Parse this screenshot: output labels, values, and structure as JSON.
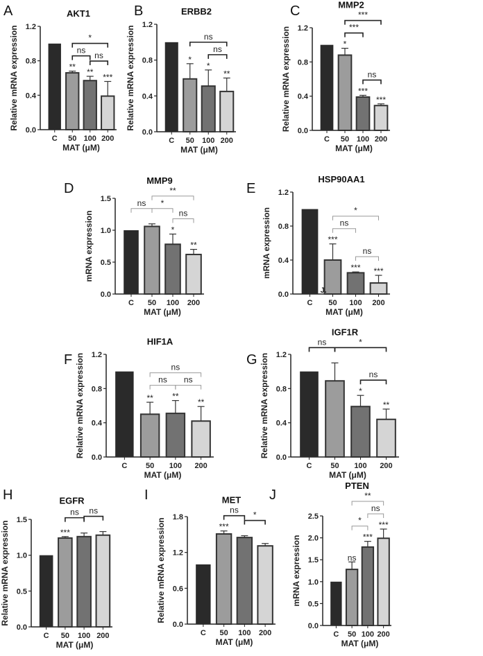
{
  "chart_data": [
    {
      "panel": "A",
      "type": "bar",
      "title": "AKT1",
      "ylabel": "Relative mRNA expression",
      "xlabel": "MAT (μM)",
      "categories": [
        "C",
        "50",
        "100",
        "200"
      ],
      "ylim": [
        0,
        1.2
      ],
      "yticks": [
        "0.0",
        "0.4",
        "0.8",
        "1.2"
      ],
      "values": [
        1.0,
        0.66,
        0.57,
        0.39
      ],
      "errors": [
        0,
        0.02,
        0.05,
        0.17
      ],
      "bar_labels": [
        "",
        "**",
        "**",
        "***"
      ],
      "comparisons": [
        {
          "from": "50",
          "to": "100",
          "label": "ns"
        },
        {
          "from": "100",
          "to": "200",
          "label": "ns"
        },
        {
          "from": "50",
          "to": "200",
          "label": "*"
        }
      ]
    },
    {
      "panel": "B",
      "type": "bar",
      "title": "ERBB2",
      "ylabel": "Relative mRNA expression",
      "xlabel": "MAT (μM)",
      "categories": [
        "C",
        "50",
        "100",
        "200"
      ],
      "ylim": [
        0,
        1.2
      ],
      "yticks": [
        "0.0",
        "0.4",
        "0.8",
        "1.2"
      ],
      "values": [
        1.0,
        0.59,
        0.51,
        0.45
      ],
      "errors": [
        0,
        0.17,
        0.18,
        0.15
      ],
      "bar_labels": [
        "",
        "*",
        "*",
        "**"
      ],
      "comparisons": [
        {
          "from": "50",
          "to": "200",
          "label": "ns"
        },
        {
          "from": "100",
          "to": "200",
          "label": "ns"
        }
      ]
    },
    {
      "panel": "C",
      "type": "bar",
      "title": "MMP2",
      "ylabel": "Relative mRNA expression",
      "xlabel": "MAT (μM)",
      "categories": [
        "C",
        "50",
        "100",
        "200"
      ],
      "ylim": [
        0,
        1.2
      ],
      "yticks": [
        "0.0",
        "0.4",
        "0.8",
        "1.2"
      ],
      "values": [
        1.0,
        0.88,
        0.39,
        0.29
      ],
      "errors": [
        0,
        0.08,
        0.02,
        0.02
      ],
      "bar_labels": [
        "",
        "*",
        "***",
        "***"
      ],
      "comparisons": [
        {
          "from": "100",
          "to": "200",
          "label": "ns"
        },
        {
          "from": "50",
          "to": "100",
          "label": "***"
        },
        {
          "from": "50",
          "to": "200",
          "label": "***"
        }
      ]
    },
    {
      "panel": "D",
      "type": "bar",
      "title": "MMP9",
      "ylabel": "mRNA expression",
      "xlabel": "MAT (μM)",
      "categories": [
        "C",
        "50",
        "100",
        "200"
      ],
      "ylim": [
        0,
        1.5
      ],
      "yticks": [
        "0.0",
        "0.5",
        "1.0",
        "1.5"
      ],
      "values": [
        1.0,
        1.06,
        0.78,
        0.62
      ],
      "errors": [
        0,
        0.04,
        0.16,
        0.08
      ],
      "bar_labels": [
        "",
        "",
        "*",
        "**"
      ],
      "comparisons": [
        {
          "from": "C",
          "to": "50",
          "label": "ns"
        },
        {
          "from": "50",
          "to": "100",
          "label": "*"
        },
        {
          "from": "100",
          "to": "200",
          "label": "ns"
        },
        {
          "from": "50",
          "to": "200",
          "label": "**"
        }
      ]
    },
    {
      "panel": "E",
      "type": "bar",
      "title": "HSP90AA1",
      "ylabel": "mRNA expression",
      "xlabel": "MAT (μM)",
      "categories": [
        "C",
        "50",
        "100",
        "200"
      ],
      "ylim": [
        0,
        1.2
      ],
      "yticks": [
        "0.0",
        "0.4",
        "0.8",
        "1.2"
      ],
      "values": [
        1.0,
        0.4,
        0.25,
        0.13
      ],
      "errors": [
        0,
        0.19,
        0.01,
        0.09
      ],
      "bar_labels": [
        "",
        "***",
        "***",
        "***"
      ],
      "comparisons": [
        {
          "from": "50",
          "to": "100",
          "label": "ns"
        },
        {
          "from": "100",
          "to": "200",
          "label": "ns"
        },
        {
          "from": "50",
          "to": "200",
          "label": "*"
        }
      ],
      "stray_mark": "J."
    },
    {
      "panel": "F",
      "type": "bar",
      "title": "HIF1A",
      "ylabel": "Relative mRNA expression",
      "xlabel": "MAT (μM)",
      "categories": [
        "C",
        "50",
        "100",
        "200"
      ],
      "ylim": [
        0,
        1.2
      ],
      "yticks": [
        "0.0",
        "0.4",
        "0.8",
        "1.2"
      ],
      "values": [
        1.0,
        0.5,
        0.51,
        0.42
      ],
      "errors": [
        0,
        0.14,
        0.15,
        0.17
      ],
      "bar_labels": [
        "",
        "**",
        "**",
        "**"
      ],
      "comparisons": [
        {
          "from": "50",
          "to": "100",
          "label": "ns"
        },
        {
          "from": "100",
          "to": "200",
          "label": "ns"
        },
        {
          "from": "50",
          "to": "200",
          "label": "ns"
        }
      ]
    },
    {
      "panel": "G",
      "type": "bar",
      "title": "IGF1R",
      "ylabel": "Relative mRNA expression",
      "xlabel": "MAT (μM)",
      "categories": [
        "C",
        "50",
        "100",
        "200"
      ],
      "ylim": [
        0,
        1.2
      ],
      "yticks": [
        "0.0",
        "0.4",
        "0.8",
        "1.2"
      ],
      "values": [
        1.0,
        0.89,
        0.59,
        0.44
      ],
      "errors": [
        0,
        0.21,
        0.13,
        0.12
      ],
      "bar_labels": [
        "",
        "",
        "*",
        "**"
      ],
      "comparisons": [
        {
          "from": "100",
          "to": "200",
          "label": "ns"
        },
        {
          "from": "C",
          "to": "50",
          "label": "ns"
        },
        {
          "from": "50",
          "to": "200",
          "label": "*"
        }
      ]
    },
    {
      "panel": "H",
      "type": "bar",
      "title": "EGFR",
      "ylabel": "Relative mRNA expression",
      "xlabel": "MAT (μM)",
      "categories": [
        "C",
        "50",
        "100",
        "200"
      ],
      "ylim": [
        0,
        1.5
      ],
      "yticks": [
        "0.0",
        "0.5",
        "1.0",
        "1.5"
      ],
      "values": [
        1.0,
        1.24,
        1.26,
        1.28
      ],
      "errors": [
        0,
        0.02,
        0.05,
        0.05
      ],
      "bar_labels": [
        "",
        "***",
        "",
        ""
      ],
      "comparisons": [
        {
          "from": "50",
          "to": "100",
          "label": "ns"
        },
        {
          "from": "100",
          "to": "200",
          "label": "ns"
        }
      ]
    },
    {
      "panel": "I",
      "type": "bar",
      "title": "MET",
      "ylabel": "Relative mRNA expression",
      "xlabel": "MAT (μM)",
      "categories": [
        "C",
        "50",
        "100",
        "200"
      ],
      "ylim": [
        0,
        1.8
      ],
      "yticks": [
        "0.0",
        "0.6",
        "1.2",
        "1.8"
      ],
      "values": [
        1.0,
        1.51,
        1.45,
        1.31
      ],
      "errors": [
        0,
        0.05,
        0.03,
        0.04
      ],
      "bar_labels": [
        "",
        "***",
        "",
        ""
      ],
      "comparisons": [
        {
          "from": "50",
          "to": "100",
          "label": "ns"
        },
        {
          "from": "100",
          "to": "200",
          "label": "*"
        }
      ]
    },
    {
      "panel": "J",
      "type": "bar",
      "title": "PTEN",
      "ylabel": "mRNA expression",
      "xlabel": "MAT (μM)",
      "categories": [
        "C",
        "50",
        "100",
        "200"
      ],
      "ylim": [
        0,
        2.5
      ],
      "yticks": [
        "0.0",
        "0.5",
        "1.0",
        "1.5",
        "2.0",
        "2.5"
      ],
      "values": [
        1.0,
        1.28,
        1.79,
        1.99
      ],
      "errors": [
        0,
        0.17,
        0.13,
        0.21
      ],
      "bar_labels": [
        "",
        "ns",
        "***",
        "***"
      ],
      "comparisons": [
        {
          "from": "50",
          "to": "100",
          "label": "*"
        },
        {
          "from": "100",
          "to": "200",
          "label": "ns"
        },
        {
          "from": "50",
          "to": "200",
          "label": "**"
        }
      ]
    }
  ],
  "colors": {
    "bars": [
      "#2a2a2a",
      "#9c9c9c",
      "#727272",
      "#d5d5d5"
    ],
    "bar_border": "#333333",
    "bracket_dark": "#222222",
    "bracket_light": "#999999"
  }
}
